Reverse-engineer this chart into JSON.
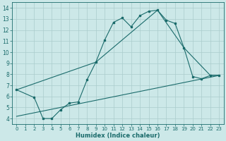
{
  "background_color": "#cce8e8",
  "grid_color": "#aacccc",
  "line_color": "#1a6b6b",
  "xlabel": "Humidex (Indice chaleur)",
  "xlim": [
    -0.5,
    23.5
  ],
  "ylim": [
    3.5,
    14.5
  ],
  "xticks": [
    0,
    1,
    2,
    3,
    4,
    5,
    6,
    7,
    8,
    9,
    10,
    11,
    12,
    13,
    14,
    15,
    16,
    17,
    18,
    19,
    20,
    21,
    22,
    23
  ],
  "yticks": [
    4,
    5,
    6,
    7,
    8,
    9,
    10,
    11,
    12,
    13,
    14
  ],
  "curve1_x": [
    0,
    2,
    3,
    4,
    5,
    6,
    7,
    8,
    9,
    10,
    11,
    12,
    13,
    14,
    15,
    16,
    17,
    18,
    19,
    20,
    21,
    22,
    23
  ],
  "curve1_y": [
    6.6,
    5.9,
    4.0,
    4.0,
    4.8,
    5.4,
    5.5,
    7.5,
    9.1,
    11.1,
    12.7,
    13.1,
    12.3,
    13.3,
    13.7,
    13.8,
    12.9,
    12.6,
    10.4,
    7.8,
    7.6,
    7.9,
    7.9
  ],
  "curve2_x": [
    0,
    9,
    16,
    19,
    22,
    23
  ],
  "curve2_y": [
    6.6,
    9.1,
    13.8,
    10.4,
    7.9,
    7.9
  ],
  "curve3_x": [
    0,
    23
  ],
  "curve3_y": [
    4.2,
    7.9
  ]
}
